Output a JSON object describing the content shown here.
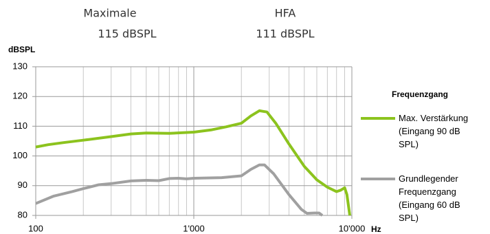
{
  "chart_data": {
    "type": "line",
    "header": [
      {
        "label": "Maximale",
        "value": "115 dBSPL"
      },
      {
        "label": "HFA",
        "value": "111 dBSPL"
      }
    ],
    "y_label": "dBSPL",
    "x_label": "Hz",
    "legend_title": "Frequenzgang",
    "xscale": "log",
    "xlim": [
      100,
      10000
    ],
    "xticks": [
      {
        "value": 100,
        "label": "100"
      },
      {
        "value": 1000,
        "label": "1'000"
      },
      {
        "value": 10000,
        "label": "10'000"
      }
    ],
    "xminorticks": [
      200,
      300,
      400,
      500,
      600,
      700,
      800,
      900,
      2000,
      3000,
      4000,
      5000,
      6000,
      7000,
      8000,
      9000
    ],
    "ylim": [
      80,
      130
    ],
    "yticks": [
      80,
      90,
      100,
      110,
      120,
      130
    ],
    "grid": true,
    "series": [
      {
        "name": "Max. Verstärkung (Eingang 90 dB SPL)",
        "color": "#8cc31e",
        "x": [
          100,
          120,
          150,
          200,
          300,
          400,
          500,
          700,
          1000,
          1300,
          1600,
          2000,
          2300,
          2600,
          2900,
          3300,
          4000,
          5000,
          6000,
          7000,
          8000,
          8500,
          9000,
          9300,
          9700
        ],
        "values": [
          103,
          103.8,
          104.5,
          105.3,
          106.5,
          107.4,
          107.7,
          107.6,
          108,
          108.8,
          109.8,
          111,
          113.5,
          115.2,
          114.8,
          111,
          104,
          96.5,
          92,
          89.5,
          88,
          88.5,
          89.3,
          87,
          80
        ]
      },
      {
        "name": "Grundlegender Frequenzgang (Eingang 60 dB SPL)",
        "color": "#a0a0a0",
        "x": [
          100,
          130,
          170,
          200,
          250,
          300,
          400,
          500,
          600,
          700,
          800,
          900,
          1000,
          1500,
          2000,
          2300,
          2600,
          2800,
          3200,
          4000,
          4800,
          5200,
          5800,
          6200,
          6500
        ],
        "values": [
          84,
          86.5,
          88,
          89,
          90.3,
          90.7,
          91.6,
          91.8,
          91.7,
          92.4,
          92.5,
          92.3,
          92.5,
          92.7,
          93.3,
          95.5,
          97,
          97,
          94,
          87,
          82,
          80.7,
          80.8,
          80.8,
          80
        ]
      }
    ]
  }
}
